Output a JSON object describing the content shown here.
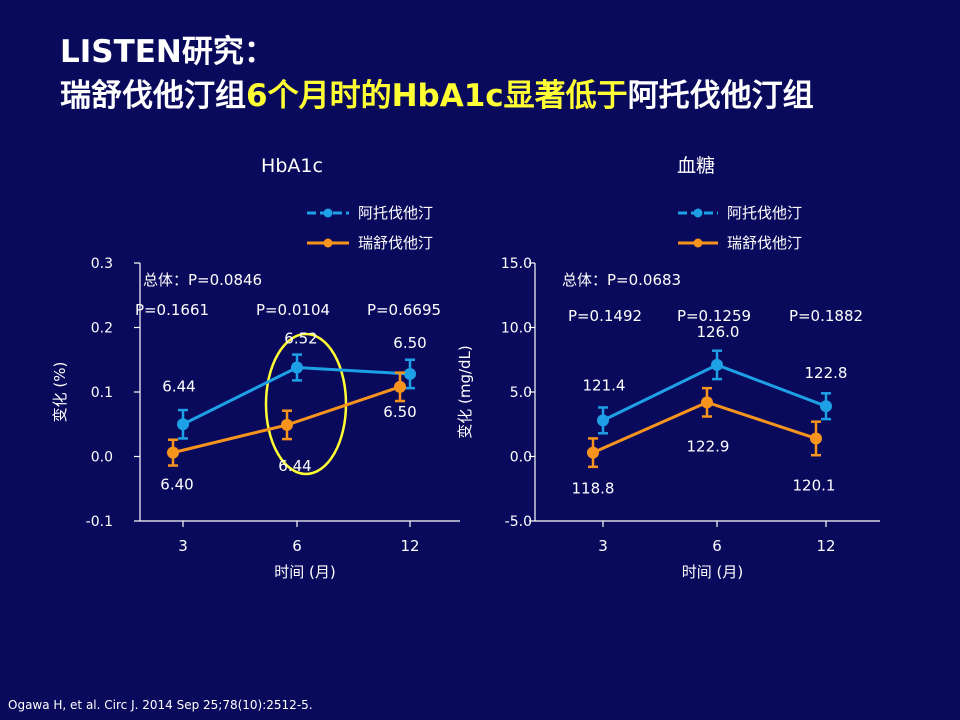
{
  "title": {
    "line1": "LISTEN研究：",
    "line2_part1": "瑞舒伐他汀组",
    "line2_highlight": "6个月时的HbA1c显著低于",
    "line2_part2": "阿托伐他汀组"
  },
  "citation": "Ogawa H, et al. Circ J. 2014 Sep 25;78(10):2512-5.",
  "colors": {
    "atorvastatin": "#1ea0e6",
    "rosuvastatin": "#f7941d",
    "ellipse": "#ffff33",
    "axis": "#ffffff"
  },
  "chart_data": [
    {
      "type": "line",
      "title": "HbA1c",
      "xlabel": "时间 (月)",
      "ylabel": "变化 (%)",
      "categories": [
        "3",
        "6",
        "12"
      ],
      "ylim": [
        -0.1,
        0.3
      ],
      "yticks": [
        -0.1,
        0.0,
        0.1,
        0.2,
        0.3
      ],
      "ytick_labels": [
        "-0.1",
        "0.0",
        "0.1",
        "0.2",
        "0.3"
      ],
      "overall_p": "总体：P=0.0846",
      "p_values": [
        "P=0.1661",
        "P=0.0104",
        "P=0.6695"
      ],
      "series": [
        {
          "name": "阿托伐他汀",
          "values": [
            0.05,
            0.138,
            0.128
          ],
          "err": [
            0.022,
            0.02,
            0.022
          ],
          "labels": [
            "6.44",
            "6.52",
            "6.50"
          ]
        },
        {
          "name": "瑞舒伐他汀",
          "values": [
            0.006,
            0.049,
            0.108
          ],
          "err": [
            0.02,
            0.022,
            0.022
          ],
          "labels": [
            "6.40",
            "6.44",
            "6.50"
          ]
        }
      ],
      "legend": "top-right",
      "highlight_category": "6"
    },
    {
      "type": "line",
      "title": "血糖",
      "xlabel": "时间 (月)",
      "ylabel": "变化 (mg/dL)",
      "categories": [
        "3",
        "6",
        "12"
      ],
      "ylim": [
        -5.0,
        15.0
      ],
      "yticks": [
        -5.0,
        0.0,
        5.0,
        10.0,
        15.0
      ],
      "ytick_labels": [
        "-5.0",
        "0.0",
        "5.0",
        "10.0",
        "15.0"
      ],
      "overall_p": "总体：P=0.0683",
      "p_values": [
        "P=0.1492",
        "P=0.1259",
        "P=0.1882"
      ],
      "series": [
        {
          "name": "阿托伐他汀",
          "values": [
            2.8,
            7.1,
            3.9
          ],
          "err": [
            1.0,
            1.1,
            1.0
          ],
          "labels": [
            "121.4",
            "126.0",
            "122.8"
          ]
        },
        {
          "name": "瑞舒伐他汀",
          "values": [
            0.3,
            4.2,
            1.4
          ],
          "err": [
            1.1,
            1.1,
            1.3
          ],
          "labels": [
            "118.8",
            "122.9",
            "120.1"
          ]
        }
      ],
      "legend": "top-right"
    }
  ]
}
